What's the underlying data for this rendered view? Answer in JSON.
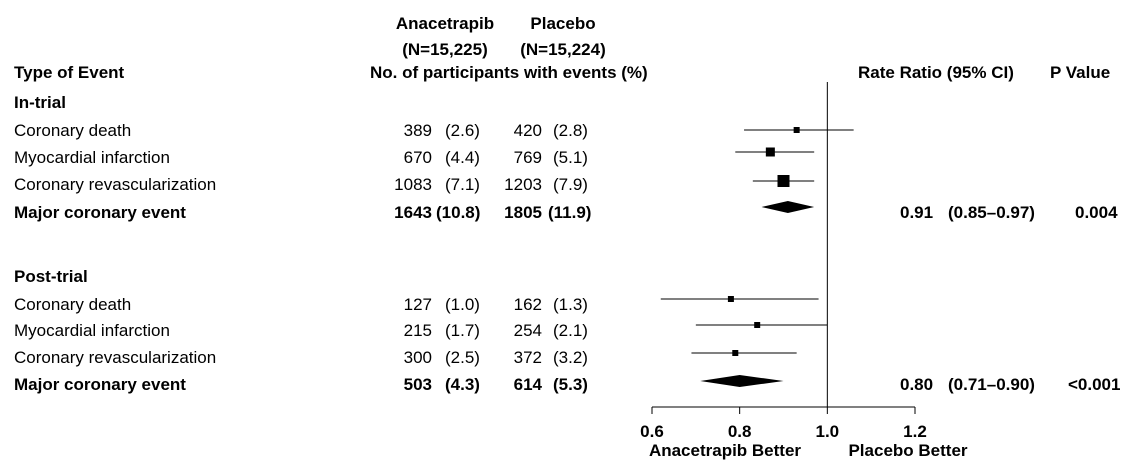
{
  "header": {
    "group1_name": "Anacetrapib",
    "group2_name": "Placebo",
    "group1_n": "(N=15,225)",
    "group2_n": "(N=15,224)",
    "events_label": "No. of participants with events (%)",
    "type_label": "Type of Event",
    "ratio_label": "Rate Ratio (95% CI)",
    "p_label": "P Value"
  },
  "sections": [
    {
      "title": "In-trial",
      "rows": [
        {
          "event": "Coronary death",
          "g1_n": "389",
          "g1_pct": "(2.6)",
          "g2_n": "420",
          "g2_pct": "(2.8)",
          "bold": false
        },
        {
          "event": "Myocardial infarction",
          "g1_n": "670",
          "g1_pct": "(4.4)",
          "g2_n": "769",
          "g2_pct": "(5.1)",
          "bold": false
        },
        {
          "event": "Coronary revascularization",
          "g1_n": "1083",
          "g1_pct": "(7.1)",
          "g2_n": "1203",
          "g2_pct": "(7.9)",
          "bold": false
        },
        {
          "event": "Major coronary event",
          "g1_n": "1643",
          "g1_pct": "(10.8)",
          "g2_n": "1805",
          "g2_pct": "(11.9)",
          "bold": true,
          "ratio": "0.91",
          "ci": "(0.85–0.97)",
          "p": "0.004"
        }
      ]
    },
    {
      "title": "Post-trial",
      "rows": [
        {
          "event": "Coronary death",
          "g1_n": "127",
          "g1_pct": "(1.0)",
          "g2_n": "162",
          "g2_pct": "(1.3)",
          "bold": false
        },
        {
          "event": "Myocardial infarction",
          "g1_n": "215",
          "g1_pct": "(1.7)",
          "g2_n": "254",
          "g2_pct": "(2.1)",
          "bold": false
        },
        {
          "event": "Coronary revascularization",
          "g1_n": "300",
          "g1_pct": "(2.5)",
          "g2_n": "372",
          "g2_pct": "(3.2)",
          "bold": false
        },
        {
          "event": "Major coronary event",
          "g1_n": "503",
          "g1_pct": "(4.3)",
          "g2_n": "614",
          "g2_pct": "(5.3)",
          "bold": true,
          "ratio": "0.80",
          "ci": "(0.71–0.90)",
          "p": "<0.001"
        }
      ]
    }
  ],
  "chart_data": {
    "type": "forest",
    "xlim": [
      0.6,
      1.2
    ],
    "xticks": [
      "0.6",
      "0.8",
      "1.0",
      "1.2"
    ],
    "reference_line": 1.0,
    "left_label": "Anacetrapib Better",
    "right_label": "Placebo Better",
    "points": [
      {
        "section": "In-trial",
        "event": "Coronary death",
        "estimate": 0.93,
        "lower": 0.81,
        "upper": 1.06,
        "marker": "square",
        "size": "small"
      },
      {
        "section": "In-trial",
        "event": "Myocardial infarction",
        "estimate": 0.87,
        "lower": 0.79,
        "upper": 0.97,
        "marker": "square",
        "size": "medium"
      },
      {
        "section": "In-trial",
        "event": "Coronary revascularization",
        "estimate": 0.9,
        "lower": 0.83,
        "upper": 0.97,
        "marker": "square",
        "size": "large"
      },
      {
        "section": "In-trial",
        "event": "Major coronary event",
        "estimate": 0.91,
        "lower": 0.85,
        "upper": 0.97,
        "marker": "diamond"
      },
      {
        "section": "Post-trial",
        "event": "Coronary death",
        "estimate": 0.78,
        "lower": 0.62,
        "upper": 0.98,
        "marker": "square",
        "size": "small"
      },
      {
        "section": "Post-trial",
        "event": "Myocardial infarction",
        "estimate": 0.84,
        "lower": 0.7,
        "upper": 1.0,
        "marker": "square",
        "size": "small"
      },
      {
        "section": "Post-trial",
        "event": "Coronary revascularization",
        "estimate": 0.79,
        "lower": 0.69,
        "upper": 0.93,
        "marker": "square",
        "size": "small"
      },
      {
        "section": "Post-trial",
        "event": "Major coronary event",
        "estimate": 0.8,
        "lower": 0.71,
        "upper": 0.9,
        "marker": "diamond"
      }
    ]
  }
}
